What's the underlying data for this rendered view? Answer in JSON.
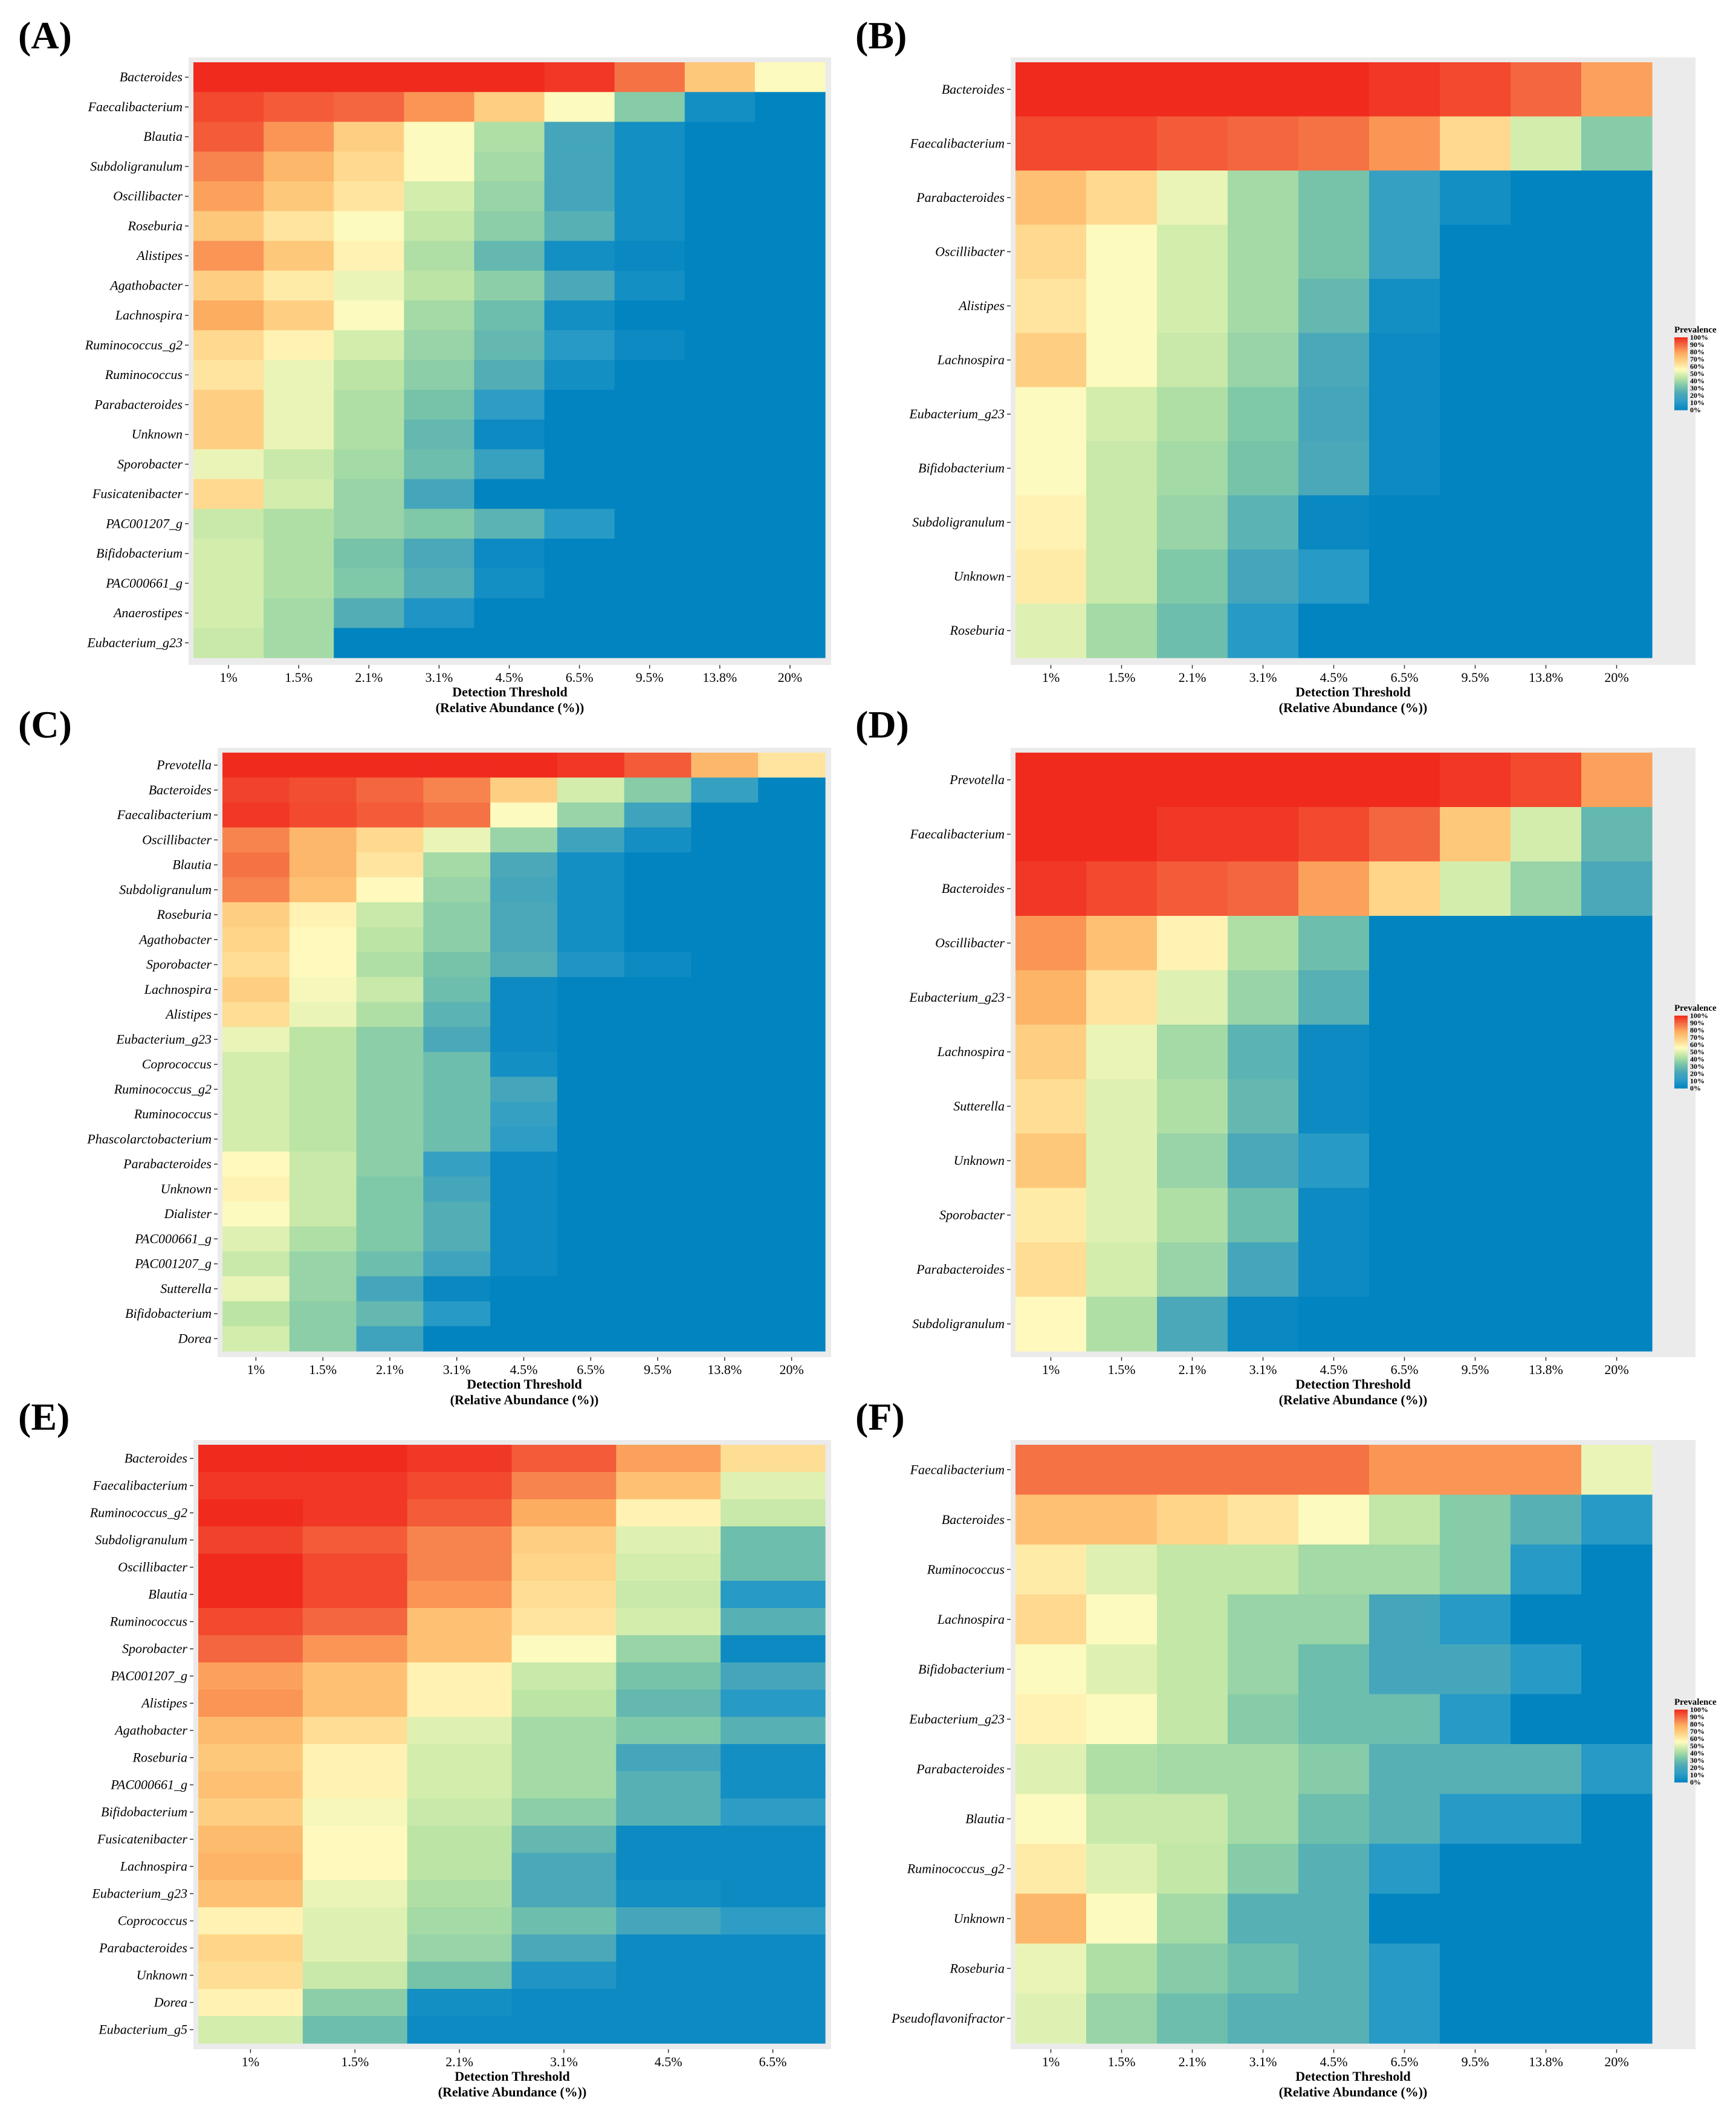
{
  "figure": {
    "colors": {
      "scale": [
        "#0284c0",
        "#2b9cc7",
        "#4ba8b8",
        "#7cc7a8",
        "#bfe6a5",
        "#fffbbf",
        "#fed386",
        "#fdae61",
        "#f46d43",
        "#f02b1e"
      ],
      "panel_bg": "#ebebeb"
    }
  },
  "chart_data": [
    {
      "panel": "(A)",
      "type": "heatmap",
      "title": "",
      "xlabel": "Detection Threshold",
      "xlabel2": "(Relative Abundance (%))",
      "ylabel": "",
      "categories": [
        "1%",
        "1.5%",
        "2.1%",
        "3.1%",
        "4.5%",
        "6.5%",
        "9.5%",
        "13.8%",
        "20%"
      ],
      "rows": [
        "Bacteroides",
        "Faecalibacterium",
        "Blautia",
        "Subdoligranulum",
        "Oscillibacter",
        "Roseburia",
        "Alistipes",
        "Agathobacter",
        "Lachnospira",
        "Ruminococcus_g2",
        "Ruminococcus",
        "Parabacteroides",
        "Unknown",
        "Sporobacter",
        "Fusicatenibacter",
        "PAC001207_g",
        "Bifidobacterium",
        "PAC000661_g",
        "Anaerostipes",
        "Eubacterium_g23"
      ],
      "values": [
        [
          100,
          100,
          100,
          100,
          100,
          98,
          88,
          70,
          55
        ],
        [
          95,
          92,
          90,
          82,
          68,
          55,
          35,
          5,
          0
        ],
        [
          92,
          82,
          68,
          55,
          42,
          20,
          5,
          0,
          0
        ],
        [
          85,
          75,
          65,
          55,
          40,
          20,
          5,
          0,
          0
        ],
        [
          80,
          70,
          62,
          48,
          38,
          20,
          5,
          0,
          0
        ],
        [
          70,
          62,
          55,
          45,
          36,
          25,
          5,
          0,
          0
        ],
        [
          82,
          70,
          58,
          42,
          28,
          5,
          2,
          0,
          0
        ],
        [
          68,
          60,
          52,
          44,
          36,
          22,
          5,
          0,
          0
        ],
        [
          78,
          68,
          55,
          40,
          30,
          5,
          0,
          0,
          0
        ],
        [
          65,
          58,
          48,
          38,
          28,
          10,
          3,
          0,
          0
        ],
        [
          62,
          52,
          44,
          36,
          24,
          5,
          0,
          0,
          0
        ],
        [
          68,
          52,
          42,
          32,
          12,
          0,
          0,
          0,
          0
        ],
        [
          68,
          52,
          42,
          28,
          3,
          0,
          0,
          0,
          0
        ],
        [
          52,
          46,
          40,
          30,
          16,
          0,
          0,
          0,
          0
        ],
        [
          65,
          48,
          38,
          20,
          0,
          0,
          0,
          0,
          0
        ],
        [
          46,
          42,
          38,
          34,
          26,
          10,
          0,
          0,
          0
        ],
        [
          48,
          42,
          32,
          22,
          3,
          0,
          0,
          0,
          0
        ],
        [
          48,
          42,
          34,
          24,
          5,
          0,
          0,
          0,
          0
        ],
        [
          48,
          40,
          24,
          8,
          0,
          0,
          0,
          0,
          0
        ],
        [
          46,
          40,
          0,
          0,
          0,
          0,
          0,
          0,
          0
        ]
      ],
      "legend": null
    },
    {
      "panel": "(B)",
      "type": "heatmap",
      "title": "",
      "xlabel": "Detection Threshold",
      "xlabel2": "(Relative Abundance (%))",
      "ylabel": "",
      "categories": [
        "1%",
        "1.5%",
        "2.1%",
        "3.1%",
        "4.5%",
        "6.5%",
        "9.5%",
        "13.8%",
        "20%"
      ],
      "rows": [
        "Bacteroides",
        "Faecalibacterium",
        "Parabacteroides",
        "Oscillibacter",
        "Alistipes",
        "Lachnospira",
        "Eubacterium_g23",
        "Bifidobacterium",
        "Subdoligranulum",
        "Unknown",
        "Roseburia"
      ],
      "values": [
        [
          100,
          100,
          100,
          100,
          100,
          98,
          95,
          90,
          80
        ],
        [
          95,
          95,
          92,
          90,
          88,
          82,
          65,
          48,
          35
        ],
        [
          72,
          65,
          52,
          40,
          32,
          15,
          5,
          0,
          0
        ],
        [
          65,
          55,
          48,
          40,
          32,
          15,
          0,
          0,
          0
        ],
        [
          62,
          55,
          48,
          40,
          28,
          5,
          0,
          0,
          0
        ],
        [
          68,
          55,
          46,
          38,
          22,
          3,
          0,
          0,
          0
        ],
        [
          55,
          48,
          42,
          34,
          20,
          3,
          0,
          0,
          0
        ],
        [
          55,
          46,
          40,
          32,
          22,
          3,
          0,
          0,
          0
        ],
        [
          58,
          46,
          38,
          26,
          2,
          0,
          0,
          0,
          0
        ],
        [
          60,
          46,
          34,
          20,
          10,
          0,
          0,
          0,
          0
        ],
        [
          50,
          40,
          30,
          10,
          0,
          0,
          0,
          0,
          0
        ]
      ],
      "legend": {
        "title": "Prevalence",
        "ticks": [
          "100%",
          "90%",
          "80%",
          "70%",
          "60%",
          "50%",
          "40%",
          "30%",
          "20%",
          "10%",
          "0%"
        ]
      }
    },
    {
      "panel": "(C)",
      "type": "heatmap",
      "title": "",
      "xlabel": "Detection Threshold",
      "xlabel2": "(Relative Abundance (%))",
      "ylabel": "",
      "categories": [
        "1%",
        "1.5%",
        "2.1%",
        "3.1%",
        "4.5%",
        "6.5%",
        "9.5%",
        "13.8%",
        "20%"
      ],
      "rows": [
        "Prevotella",
        "Bacteroides",
        "Faecalibacterium",
        "Oscillibacter",
        "Blautia",
        "Subdoligranulum",
        "Roseburia",
        "Agathobacter",
        "Sporobacter",
        "Lachnospira",
        "Alistipes",
        "Eubacterium_g23",
        "Coprococcus",
        "Ruminococcus_g2",
        "Ruminococcus",
        "Phascolarctobacterium",
        "Parabacteroides",
        "Unknown",
        "Dialister",
        "PAC000661_g",
        "PAC001207_g",
        "Sutterella",
        "Bifidobacterium",
        "Dorea"
      ],
      "values": [
        [
          100,
          100,
          100,
          100,
          100,
          98,
          92,
          75,
          62
        ],
        [
          96,
          94,
          90,
          85,
          68,
          48,
          35,
          15,
          0
        ],
        [
          98,
          95,
          92,
          88,
          55,
          38,
          18,
          0,
          0
        ],
        [
          85,
          75,
          65,
          52,
          38,
          18,
          5,
          0,
          0
        ],
        [
          88,
          75,
          62,
          40,
          22,
          5,
          0,
          0,
          0
        ],
        [
          85,
          72,
          56,
          38,
          20,
          5,
          0,
          0,
          0
        ],
        [
          68,
          58,
          46,
          36,
          22,
          5,
          0,
          0,
          0
        ],
        [
          66,
          56,
          44,
          36,
          22,
          5,
          0,
          0,
          0
        ],
        [
          64,
          56,
          42,
          32,
          24,
          8,
          3,
          0,
          0
        ],
        [
          68,
          54,
          46,
          30,
          3,
          0,
          0,
          0,
          0
        ],
        [
          64,
          52,
          42,
          26,
          3,
          0,
          0,
          0,
          0
        ],
        [
          52,
          44,
          36,
          22,
          3,
          0,
          0,
          0,
          0
        ],
        [
          48,
          44,
          36,
          30,
          5,
          0,
          0,
          0,
          0
        ],
        [
          48,
          44,
          36,
          30,
          20,
          0,
          0,
          0,
          0
        ],
        [
          48,
          44,
          36,
          30,
          15,
          0,
          0,
          0,
          0
        ],
        [
          48,
          44,
          36,
          30,
          12,
          0,
          0,
          0,
          0
        ],
        [
          56,
          46,
          36,
          15,
          3,
          0,
          0,
          0,
          0
        ],
        [
          58,
          46,
          34,
          20,
          3,
          0,
          0,
          0,
          0
        ],
        [
          55,
          46,
          34,
          24,
          3,
          0,
          0,
          0,
          0
        ],
        [
          50,
          42,
          34,
          24,
          3,
          0,
          0,
          0,
          0
        ],
        [
          46,
          38,
          30,
          18,
          3,
          0,
          0,
          0,
          0
        ],
        [
          52,
          38,
          20,
          2,
          0,
          0,
          0,
          0,
          0
        ],
        [
          44,
          36,
          28,
          10,
          0,
          0,
          0,
          0,
          0
        ],
        [
          48,
          36,
          18,
          0,
          0,
          0,
          0,
          0,
          0
        ]
      ],
      "legend": null
    },
    {
      "panel": "(D)",
      "type": "heatmap",
      "title": "",
      "xlabel": "Detection Threshold",
      "xlabel2": "(Relative Abundance (%))",
      "ylabel": "",
      "categories": [
        "1%",
        "1.5%",
        "2.1%",
        "3.1%",
        "4.5%",
        "6.5%",
        "9.5%",
        "13.8%",
        "20%"
      ],
      "rows": [
        "Prevotella",
        "Faecalibacterium",
        "Bacteroides",
        "Oscillibacter",
        "Eubacterium_g23",
        "Lachnospira",
        "Sutterella",
        "Unknown",
        "Sporobacter",
        "Parabacteroides",
        "Subdoligranulum"
      ],
      "values": [
        [
          100,
          100,
          100,
          100,
          100,
          100,
          98,
          95,
          80
        ],
        [
          100,
          100,
          98,
          98,
          95,
          90,
          70,
          48,
          28
        ],
        [
          98,
          95,
          92,
          90,
          80,
          66,
          48,
          38,
          22
        ],
        [
          82,
          72,
          58,
          42,
          30,
          0,
          0,
          0,
          0
        ],
        [
          76,
          62,
          50,
          38,
          25,
          0,
          0,
          0,
          0
        ],
        [
          68,
          52,
          40,
          26,
          3,
          0,
          0,
          0,
          0
        ],
        [
          64,
          50,
          42,
          28,
          3,
          0,
          0,
          0,
          0
        ],
        [
          70,
          50,
          38,
          22,
          10,
          0,
          0,
          0,
          0
        ],
        [
          60,
          50,
          42,
          30,
          3,
          0,
          0,
          0,
          0
        ],
        [
          64,
          48,
          38,
          20,
          3,
          0,
          0,
          0,
          0
        ],
        [
          56,
          42,
          22,
          2,
          0,
          0,
          0,
          0,
          0
        ]
      ],
      "legend": {
        "title": "Prevalence",
        "ticks": [
          "100%",
          "90%",
          "80%",
          "70%",
          "60%",
          "50%",
          "40%",
          "30%",
          "20%",
          "10%",
          "0%"
        ]
      }
    },
    {
      "panel": "(E)",
      "type": "heatmap",
      "title": "",
      "xlabel": "Detection Threshold",
      "xlabel2": "(Relative Abundance (%))",
      "ylabel": "",
      "categories": [
        "1%",
        "1.5%",
        "2.1%",
        "3.1%",
        "4.5%",
        "6.5%"
      ],
      "rows": [
        "Bacteroides",
        "Faecalibacterium",
        "Ruminococcus_g2",
        "Subdoligranulum",
        "Oscillibacter",
        "Blautia",
        "Ruminococcus",
        "Sporobacter",
        "PAC001207_g",
        "Alistipes",
        "Agathobacter",
        "Roseburia",
        "PAC000661_g",
        "Bifidobacterium",
        "Fusicatenibacter",
        "Lachnospira",
        "Eubacterium_g23",
        "Coprococcus",
        "Parabacteroides",
        "Unknown",
        "Dorea",
        "Eubacterium_g5"
      ],
      "values": [
        [
          100,
          100,
          98,
          92,
          80,
          64
        ],
        [
          98,
          98,
          95,
          85,
          72,
          50
        ],
        [
          100,
          98,
          92,
          78,
          58,
          46
        ],
        [
          96,
          92,
          85,
          68,
          50,
          30
        ],
        [
          100,
          95,
          85,
          66,
          48,
          30
        ],
        [
          100,
          95,
          82,
          64,
          46,
          10
        ],
        [
          95,
          90,
          72,
          62,
          48,
          25
        ],
        [
          90,
          82,
          72,
          55,
          38,
          3
        ],
        [
          80,
          72,
          58,
          46,
          32,
          20
        ],
        [
          82,
          72,
          58,
          44,
          28,
          10
        ],
        [
          74,
          64,
          50,
          40,
          34,
          25
        ],
        [
          70,
          58,
          48,
          40,
          20,
          5
        ],
        [
          72,
          58,
          48,
          40,
          25,
          5
        ],
        [
          68,
          54,
          46,
          36,
          25,
          12
        ],
        [
          74,
          56,
          44,
          28,
          3,
          3
        ],
        [
          76,
          56,
          44,
          22,
          3,
          3
        ],
        [
          72,
          52,
          42,
          22,
          5,
          3
        ],
        [
          58,
          50,
          40,
          30,
          20,
          12
        ],
        [
          66,
          50,
          38,
          22,
          3,
          3
        ],
        [
          64,
          46,
          32,
          8,
          3,
          3
        ],
        [
          58,
          36,
          5,
          3,
          3,
          3
        ],
        [
          48,
          30,
          3,
          3,
          3,
          3
        ]
      ],
      "legend": null
    },
    {
      "panel": "(F)",
      "type": "heatmap",
      "title": "",
      "xlabel": "Detection Threshold",
      "xlabel2": "(Relative Abundance (%))",
      "ylabel": "",
      "categories": [
        "1%",
        "1.5%",
        "2.1%",
        "3.1%",
        "4.5%",
        "6.5%",
        "9.5%",
        "13.8%",
        "20%"
      ],
      "rows": [
        "Faecalibacterium",
        "Bacteroides",
        "Ruminococcus",
        "Lachnospira",
        "Bifidobacterium",
        "Eubacterium_g23",
        "Parabacteroides",
        "Blautia",
        "Ruminococcus_g2",
        "Unknown",
        "Roseburia",
        "Pseudoflavonifractor"
      ],
      "values": [
        [
          88,
          88,
          88,
          88,
          88,
          82,
          82,
          82,
          52
        ],
        [
          72,
          72,
          66,
          62,
          55,
          45,
          35,
          25,
          10
        ],
        [
          60,
          50,
          45,
          45,
          40,
          40,
          35,
          10,
          0
        ],
        [
          65,
          55,
          45,
          38,
          38,
          20,
          10,
          0,
          0
        ],
        [
          55,
          50,
          45,
          38,
          30,
          20,
          20,
          10,
          0
        ],
        [
          58,
          55,
          45,
          35,
          30,
          30,
          10,
          0,
          0
        ],
        [
          50,
          42,
          40,
          40,
          35,
          25,
          25,
          25,
          10
        ],
        [
          55,
          46,
          46,
          40,
          30,
          25,
          10,
          10,
          0
        ],
        [
          60,
          50,
          45,
          35,
          25,
          10,
          0,
          0,
          0
        ],
        [
          75,
          55,
          40,
          25,
          25,
          0,
          0,
          0,
          0
        ],
        [
          52,
          42,
          35,
          30,
          25,
          10,
          0,
          0,
          0
        ],
        [
          50,
          38,
          30,
          25,
          25,
          10,
          0,
          0,
          0
        ]
      ],
      "legend": {
        "title": "Prevalence",
        "ticks": [
          "100%",
          "90%",
          "80%",
          "70%",
          "60%",
          "50%",
          "40%",
          "30%",
          "20%",
          "10%",
          "0%"
        ]
      }
    }
  ]
}
